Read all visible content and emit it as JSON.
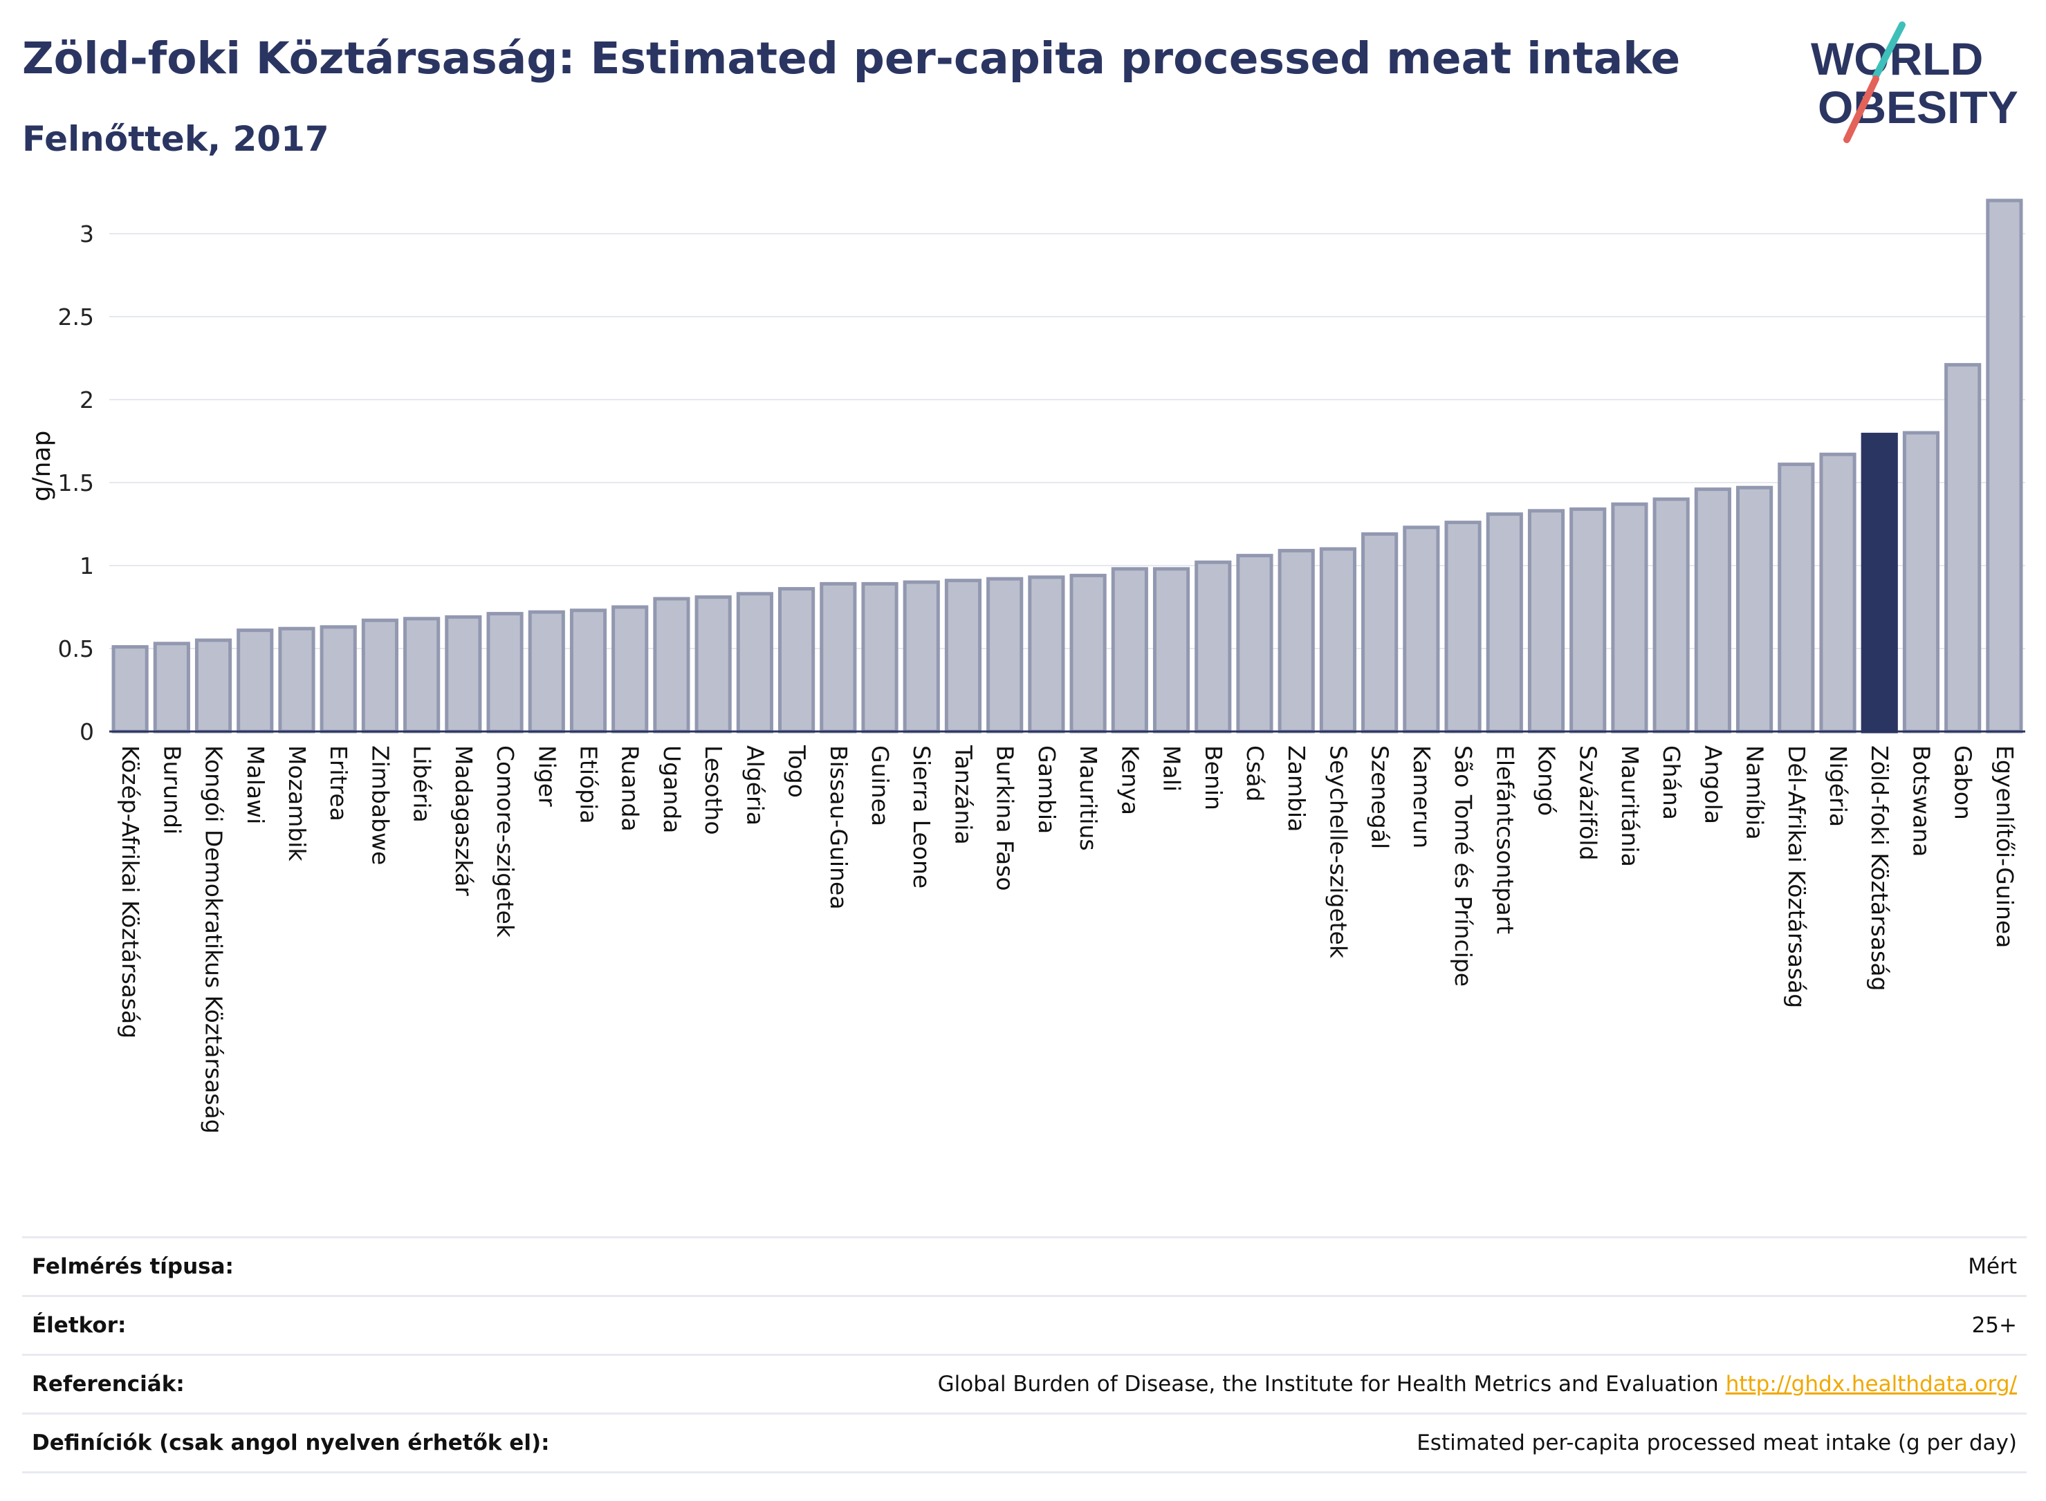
{
  "header": {
    "title": "Zöld-foki Köztársaság: Estimated per-capita processed meat intake",
    "subtitle": "Felnőttek, 2017"
  },
  "logo": {
    "line1": "WORLD",
    "line2": "OBESITY"
  },
  "chart_data": {
    "type": "bar",
    "ylabel": "g/nap",
    "xlabel": "",
    "ylim": [
      0,
      3.2
    ],
    "yticks": [
      0,
      0.5,
      1,
      1.5,
      2,
      2.5,
      3
    ],
    "ytick_labels": [
      "0",
      "0.5",
      "1",
      "1.5",
      "2",
      "2.5",
      "3"
    ],
    "grid": true,
    "highlight": "Zöld-foki Köztársaság",
    "colors": {
      "bar": "#bcc0ce",
      "bar_edge": "#9298b0",
      "highlight": "#2b3562",
      "grid": "#e6e8ee",
      "axis": "#2b3562"
    },
    "categories": [
      "Közép-Afrikai Köztársaság",
      "Burundi",
      "Kongói Demokratikus Köztársaság",
      "Malawi",
      "Mozambik",
      "Eritrea",
      "Zimbabwe",
      "Libéria",
      "Madagaszkár",
      "Comore-szigetek",
      "Niger",
      "Etiópia",
      "Ruanda",
      "Uganda",
      "Lesotho",
      "Algéria",
      "Togo",
      "Bissau-Guinea",
      "Guinea",
      "Sierra Leone",
      "Tanzánia",
      "Burkina Faso",
      "Gambia",
      "Mauritius",
      "Kenya",
      "Mali",
      "Benin",
      "Csád",
      "Zambia",
      "Seychelle-szigetek",
      "Szenegál",
      "Kamerun",
      "São Tomé és Príncipe",
      "Elefántcsontpart",
      "Kongó",
      "Szváziföld",
      "Mauritánia",
      "Ghána",
      "Angola",
      "Namíbia",
      "Dél-Afrikai Köztársaság",
      "Nigéria",
      "Zöld-foki Köztársaság",
      "Botswana",
      "Gabon",
      "Egyenlítői-Guinea"
    ],
    "values": [
      0.51,
      0.53,
      0.55,
      0.61,
      0.62,
      0.63,
      0.67,
      0.68,
      0.69,
      0.71,
      0.72,
      0.73,
      0.75,
      0.8,
      0.81,
      0.83,
      0.86,
      0.89,
      0.89,
      0.9,
      0.91,
      0.92,
      0.93,
      0.94,
      0.98,
      0.98,
      1.02,
      1.06,
      1.09,
      1.1,
      1.19,
      1.23,
      1.26,
      1.31,
      1.33,
      1.34,
      1.37,
      1.4,
      1.46,
      1.47,
      1.61,
      1.67,
      1.79,
      1.8,
      2.21,
      3.2
    ]
  },
  "meta": {
    "rows": [
      {
        "label": "Felmérés típusa:",
        "value": "Mért"
      },
      {
        "label": "Életkor:",
        "value": "25+"
      },
      {
        "label": "Referenciák:",
        "value": "Global Burden of Disease, the Institute for Health Metrics and Evaluation",
        "link": "http://ghdx.healthdata.org/"
      },
      {
        "label": "Definíciók (csak angol nyelven érhetők el):",
        "value": "Estimated per-capita processed meat intake (g per day)"
      }
    ]
  }
}
